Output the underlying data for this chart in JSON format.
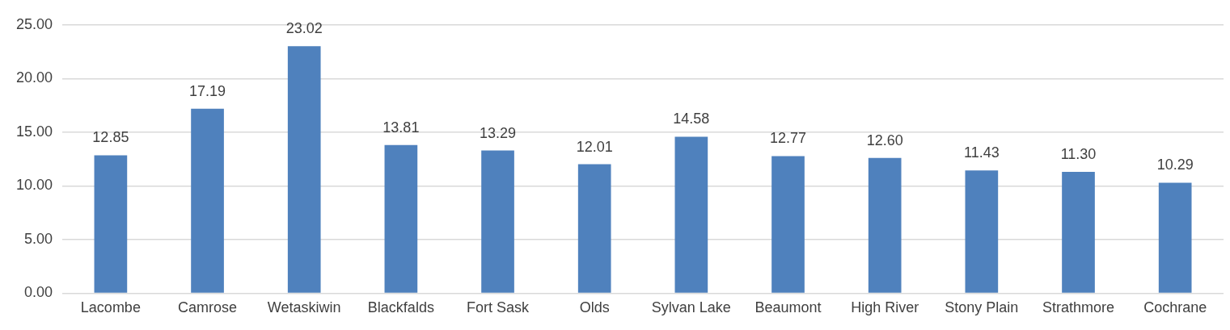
{
  "chart_data": {
    "type": "bar",
    "categories": [
      "Lacombe",
      "Camrose",
      "Wetaskiwin",
      "Blackfalds",
      "Fort Sask",
      "Olds",
      "Sylvan Lake",
      "Beaumont",
      "High River",
      "Stony Plain",
      "Strathmore",
      "Cochrane"
    ],
    "values": [
      12.85,
      17.19,
      23.02,
      13.81,
      13.29,
      12.01,
      14.58,
      12.77,
      12.6,
      11.43,
      11.3,
      10.29
    ],
    "value_labels": [
      "12.85",
      "17.19",
      "23.02",
      "13.81",
      "13.29",
      "12.01",
      "14.58",
      "12.77",
      "12.60",
      "11.43",
      "11.30",
      "10.29"
    ],
    "color": "#4f81bd",
    "ylim": [
      0,
      25
    ],
    "yticks": [
      {
        "value": 0,
        "label": "0.00"
      },
      {
        "value": 5,
        "label": "5.00"
      },
      {
        "value": 10,
        "label": "10.00"
      },
      {
        "value": 15,
        "label": "15.00"
      },
      {
        "value": 20,
        "label": "20.00"
      },
      {
        "value": 25,
        "label": "25.00"
      }
    ],
    "grid": "y",
    "legend": false
  }
}
